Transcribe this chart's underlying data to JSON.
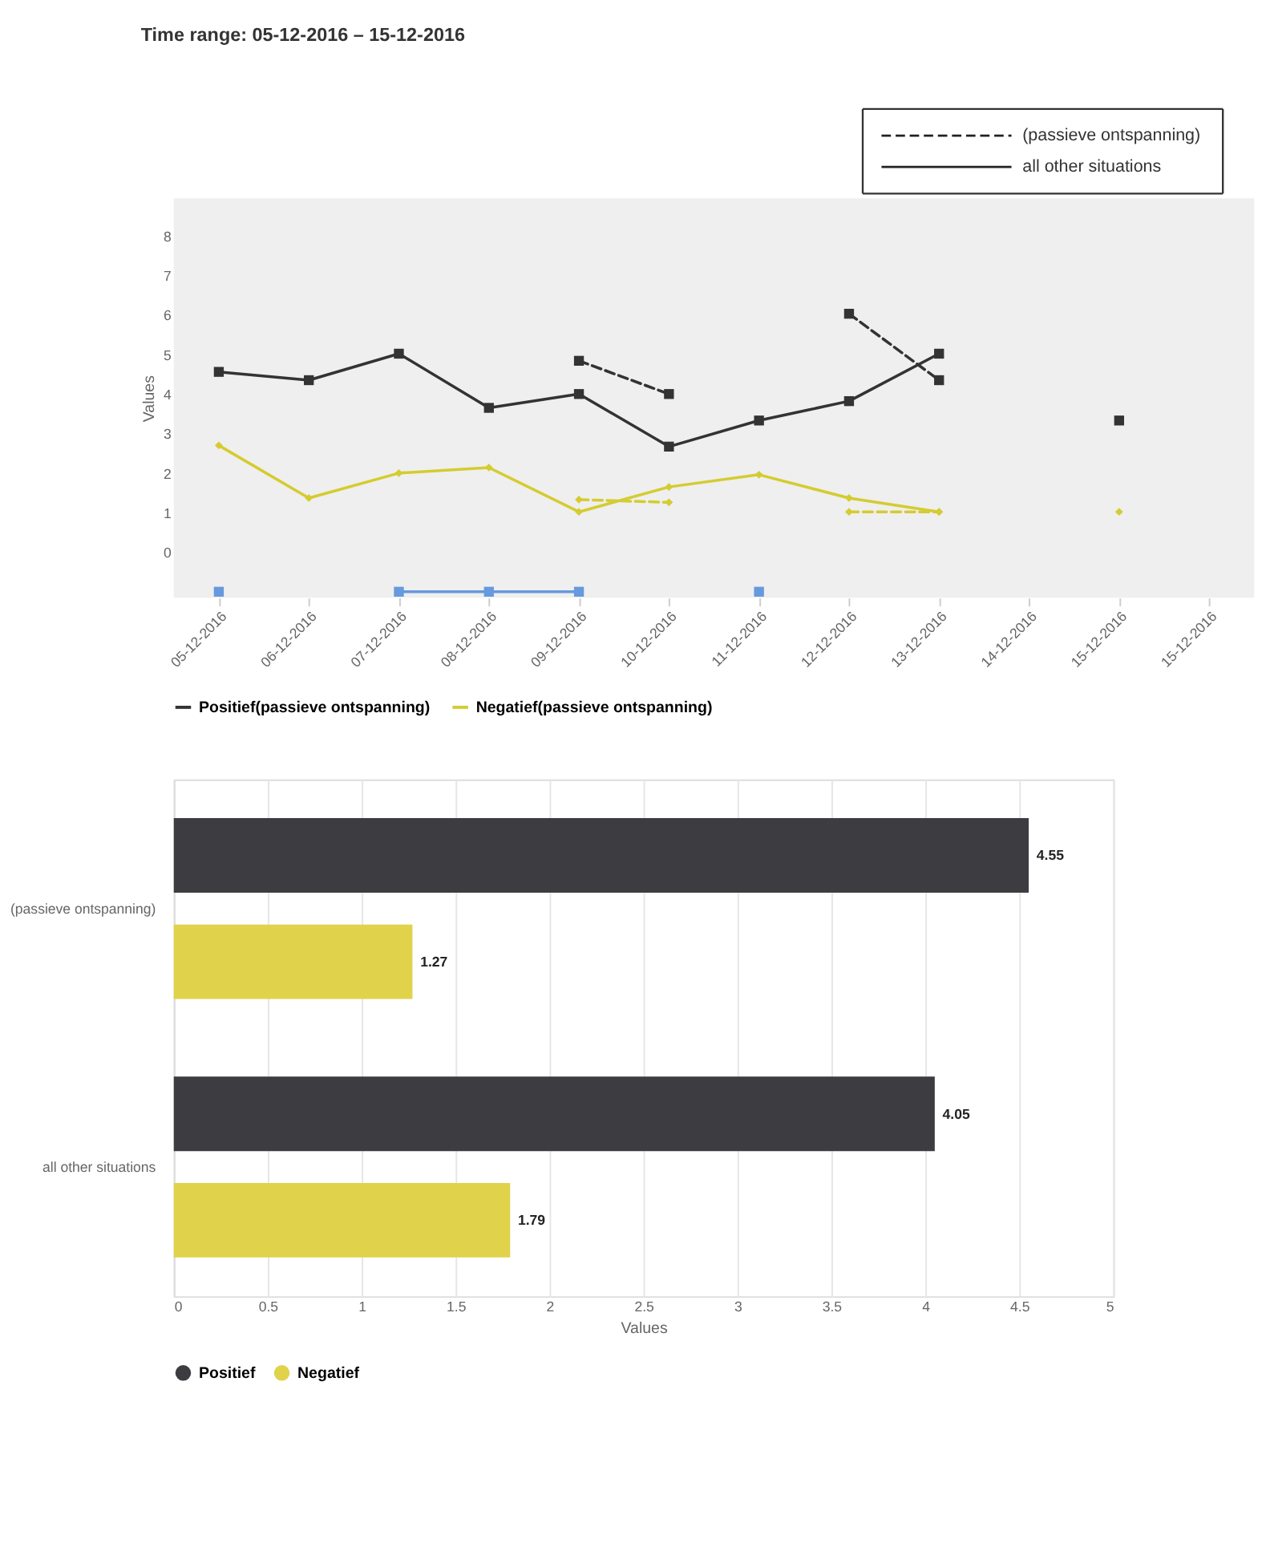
{
  "chart_data": [
    {
      "type": "line",
      "title": "Time range: 05-12-2016 – 15-12-2016",
      "ylabel": "Values",
      "categories": [
        "05-12-2016",
        "06-12-2016",
        "07-12-2016",
        "08-12-2016",
        "09-12-2016",
        "10-12-2016",
        "11-12-2016",
        "12-12-2016",
        "13-12-2016",
        "14-12-2016",
        "15-12-2016",
        "15-12-2016"
      ],
      "ylim": [
        -1.15,
        8.95
      ],
      "yticks": [
        0,
        1,
        2,
        3,
        4,
        5,
        6,
        7,
        8
      ],
      "grid": false,
      "legend": "bottom",
      "annotations": [
        "(passieve ontspanning)",
        "all other situations"
      ],
      "series": [
        {
          "name": "Positief(passieve ontspanning)",
          "color": "#333333",
          "line_style": "solid",
          "marker": "square",
          "values": [
            4.56,
            4.35,
            5.02,
            3.65,
            4.0,
            2.67,
            3.33,
            3.82,
            5.02,
            null,
            3.33,
            null
          ]
        },
        {
          "color": "#333333",
          "line_style": "dashed",
          "marker": "square",
          "values": [
            null,
            null,
            null,
            null,
            4.84,
            4.0,
            null,
            6.03,
            4.35,
            null,
            null,
            null
          ]
        },
        {
          "name": "Negatief(passieve ontspanning)",
          "color": "#d4cc30",
          "line_style": "solid",
          "marker": "diamond",
          "values": [
            2.7,
            1.37,
            2.0,
            2.14,
            1.02,
            1.65,
            1.96,
            1.37,
            1.02,
            null,
            1.02,
            null
          ]
        },
        {
          "color": "#d4cc30",
          "line_style": "dashed",
          "marker": "diamond",
          "values": [
            null,
            null,
            null,
            null,
            1.33,
            1.26,
            null,
            1.02,
            1.02,
            null,
            null,
            null
          ]
        },
        {
          "color": "#6699dd",
          "line_style": "solid",
          "marker": "square",
          "values": [
            -1,
            null,
            -1,
            -1,
            -1,
            null,
            -1,
            null,
            null,
            null,
            null,
            null
          ]
        }
      ]
    },
    {
      "type": "bar",
      "orientation": "horizontal",
      "xlabel": "Values",
      "categories": [
        "(passieve ontspanning)",
        "all other situations"
      ],
      "xlim": [
        0,
        5
      ],
      "xticks": [
        0,
        0.5,
        1,
        1.5,
        2,
        2.5,
        3,
        3.5,
        4,
        4.5,
        5
      ],
      "grid": "x",
      "legend": "bottom",
      "data_labels": true,
      "series": [
        {
          "name": "Positief",
          "color": "#3c3c41",
          "values": [
            4.55,
            4.05
          ]
        },
        {
          "name": "Negatief",
          "color": "#e0d24a",
          "values": [
            1.27,
            1.79
          ]
        }
      ]
    }
  ]
}
